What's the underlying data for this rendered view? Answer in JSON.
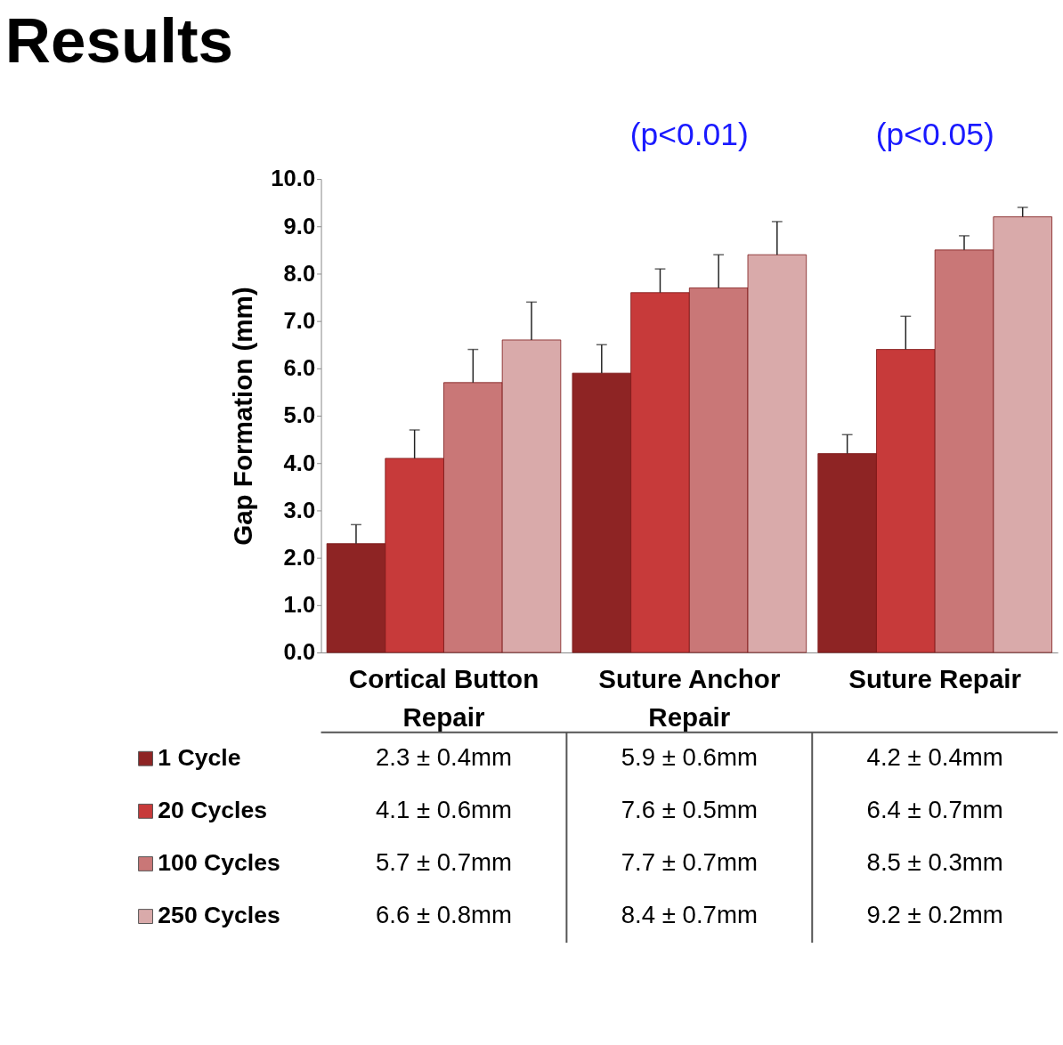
{
  "chart_data": {
    "type": "bar",
    "title": "Results",
    "ylabel": "Gap Formation (mm)",
    "categories": [
      "Cortical Button Repair",
      "Suture Anchor Repair",
      "Suture Repair"
    ],
    "series": [
      {
        "name": "1 Cycle",
        "color": "#8e2424",
        "values": [
          2.3,
          5.9,
          4.2
        ],
        "errors": [
          0.4,
          0.6,
          0.4
        ],
        "value_labels": [
          "2.3 ± 0.4mm",
          "5.9 ± 0.6mm",
          "4.2 ±  0.4mm"
        ]
      },
      {
        "name": "20 Cycles",
        "color": "#c73a3a",
        "values": [
          4.1,
          7.6,
          6.4
        ],
        "errors": [
          0.6,
          0.5,
          0.7
        ],
        "value_labels": [
          "4.1 ± 0.6mm",
          "7.6 ± 0.5mm",
          "6.4 ± 0.7mm"
        ]
      },
      {
        "name": "100 Cycles",
        "color": "#c97777",
        "values": [
          5.7,
          7.7,
          8.5
        ],
        "errors": [
          0.7,
          0.7,
          0.3
        ],
        "value_labels": [
          "5.7 ± 0.7mm",
          "7.7 ± 0.7mm",
          "8.5 ± 0.3mm"
        ]
      },
      {
        "name": "250 Cycles",
        "color": "#d9aaaa",
        "values": [
          6.6,
          8.4,
          9.2
        ],
        "errors": [
          0.8,
          0.7,
          0.2
        ],
        "value_labels": [
          "6.6 ± 0.8mm",
          "8.4 ± 0.7mm",
          "9.2 ± 0.2mm"
        ]
      }
    ],
    "ylim": [
      0,
      10
    ],
    "yticks": [
      {
        "value": 0,
        "label": "0.0"
      },
      {
        "value": 1,
        "label": "1.0"
      },
      {
        "value": 2,
        "label": "2.0"
      },
      {
        "value": 3,
        "label": "3.0"
      },
      {
        "value": 4,
        "label": "4.0"
      },
      {
        "value": 5,
        "label": "5.0"
      },
      {
        "value": 6,
        "label": "6.0"
      },
      {
        "value": 7,
        "label": "7.0"
      },
      {
        "value": 8,
        "label": "8.0"
      },
      {
        "value": 9,
        "label": "9.0"
      },
      {
        "value": 10,
        "label": "10.0"
      }
    ],
    "annotations": [
      "(p<0.01)",
      "(p<0.05)"
    ],
    "grid": false,
    "legend": "bottom left"
  }
}
